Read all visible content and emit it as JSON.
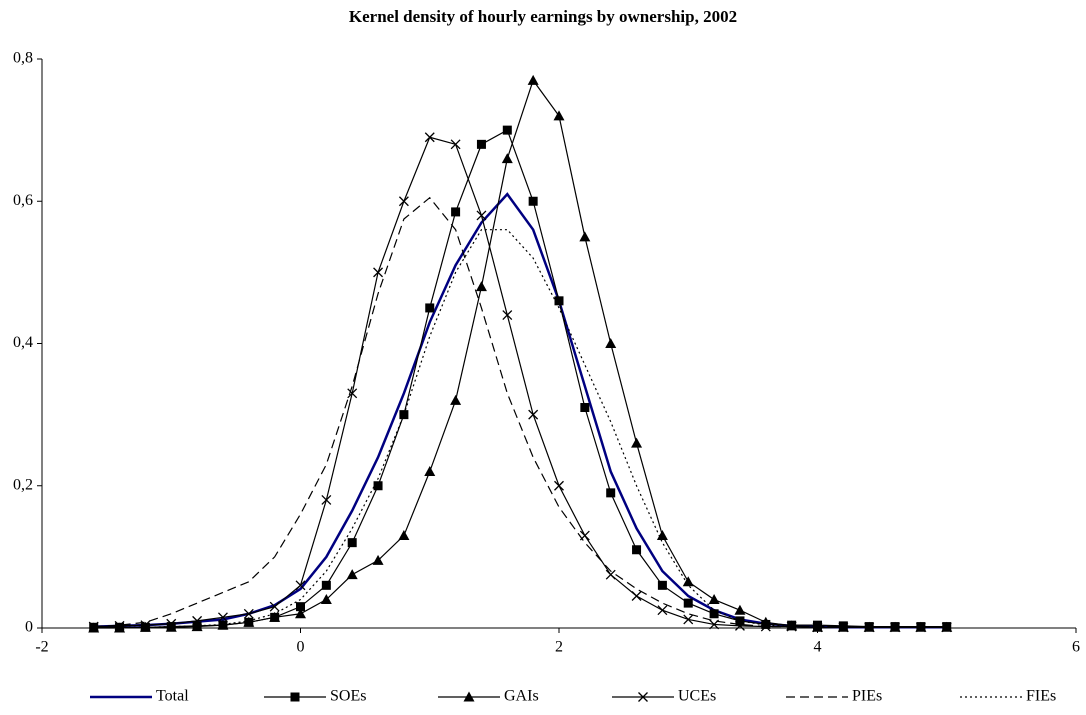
{
  "chart_data": {
    "type": "line",
    "title": "Kernel density of hourly earnings by ownership, 2002",
    "x": [
      -1.6,
      -1.4,
      -1.2,
      -1.0,
      -0.8,
      -0.6,
      -0.4,
      -0.2,
      0,
      0.2,
      0.4,
      0.6,
      0.8,
      1.0,
      1.2,
      1.4,
      1.6,
      1.8,
      2.0,
      2.2,
      2.4,
      2.6,
      2.8,
      3.0,
      3.2,
      3.4,
      3.6,
      3.8,
      4.0,
      4.2,
      4.4,
      4.6,
      4.8,
      5.0
    ],
    "series": [
      {
        "name": "Total",
        "color": "#000080",
        "dash": "solid",
        "marker": "none",
        "values": [
          0.002,
          0.003,
          0.004,
          0.006,
          0.009,
          0.012,
          0.02,
          0.032,
          0.055,
          0.1,
          0.165,
          0.24,
          0.33,
          0.43,
          0.51,
          0.57,
          0.61,
          0.56,
          0.46,
          0.34,
          0.22,
          0.14,
          0.08,
          0.045,
          0.025,
          0.012,
          0.006,
          0.003,
          0.002,
          0.001,
          0.001,
          0.001,
          0.001,
          0.001
        ]
      },
      {
        "name": "SOEs",
        "color": "#000000",
        "dash": "solid",
        "marker": "square",
        "values": [
          0.001,
          0.001,
          0.001,
          0.002,
          0.003,
          0.004,
          0.008,
          0.015,
          0.03,
          0.06,
          0.12,
          0.2,
          0.3,
          0.45,
          0.585,
          0.68,
          0.7,
          0.6,
          0.46,
          0.31,
          0.19,
          0.11,
          0.06,
          0.035,
          0.02,
          0.01,
          0.005,
          0.004,
          0.004,
          0.003,
          0.002,
          0.002,
          0.002,
          0.002
        ]
      },
      {
        "name": "GAIs",
        "color": "#000000",
        "dash": "solid",
        "marker": "triangle",
        "values": [
          0.0,
          0.0,
          0.001,
          0.001,
          0.002,
          0.004,
          0.008,
          0.015,
          0.02,
          0.04,
          0.075,
          0.095,
          0.13,
          0.22,
          0.32,
          0.48,
          0.66,
          0.77,
          0.72,
          0.55,
          0.4,
          0.26,
          0.13,
          0.065,
          0.04,
          0.025,
          0.008,
          0.003,
          0.001,
          0.001,
          0.001,
          0.001,
          0.001,
          0.001
        ]
      },
      {
        "name": "UCEs",
        "color": "#000000",
        "dash": "solid",
        "marker": "cross",
        "values": [
          0.002,
          0.003,
          0.004,
          0.006,
          0.01,
          0.015,
          0.02,
          0.03,
          0.06,
          0.18,
          0.33,
          0.5,
          0.6,
          0.69,
          0.68,
          0.58,
          0.44,
          0.3,
          0.2,
          0.13,
          0.075,
          0.045,
          0.025,
          0.012,
          0.005,
          0.003,
          0.002,
          0.002,
          0.001,
          0.001,
          0.001,
          0.001,
          0.001,
          0.001
        ]
      },
      {
        "name": "PIEs",
        "color": "#000000",
        "dash": "long",
        "marker": "none",
        "values": [
          0.002,
          0.004,
          0.008,
          0.02,
          0.035,
          0.05,
          0.065,
          0.1,
          0.16,
          0.23,
          0.34,
          0.47,
          0.575,
          0.605,
          0.56,
          0.45,
          0.33,
          0.24,
          0.17,
          0.12,
          0.08,
          0.055,
          0.035,
          0.02,
          0.01,
          0.005,
          0.002,
          0.002,
          0.002,
          0.002,
          0.002,
          0.002,
          0.002,
          0.002
        ]
      },
      {
        "name": "FIEs",
        "color": "#000000",
        "dash": "dotted",
        "marker": "none",
        "values": [
          0.001,
          0.001,
          0.001,
          0.002,
          0.003,
          0.005,
          0.01,
          0.02,
          0.04,
          0.08,
          0.14,
          0.21,
          0.3,
          0.41,
          0.5,
          0.56,
          0.56,
          0.52,
          0.45,
          0.37,
          0.29,
          0.2,
          0.12,
          0.06,
          0.025,
          0.01,
          0.004,
          0.002,
          0.002,
          0.002,
          0.002,
          0.002,
          0.002,
          0.002
        ]
      }
    ],
    "xlim": [
      -2,
      6
    ],
    "xticks": [
      -2,
      0,
      2,
      4,
      6
    ],
    "ylim": [
      0,
      0.8
    ],
    "yticks": [
      0,
      {
        "value": 0.2,
        "label": "0,2"
      },
      {
        "value": 0.4,
        "label": "0,4"
      },
      {
        "value": 0.6,
        "label": "0,6"
      },
      {
        "value": 0.8,
        "label": "0,8"
      }
    ],
    "grid": false,
    "legend": "bottom"
  }
}
